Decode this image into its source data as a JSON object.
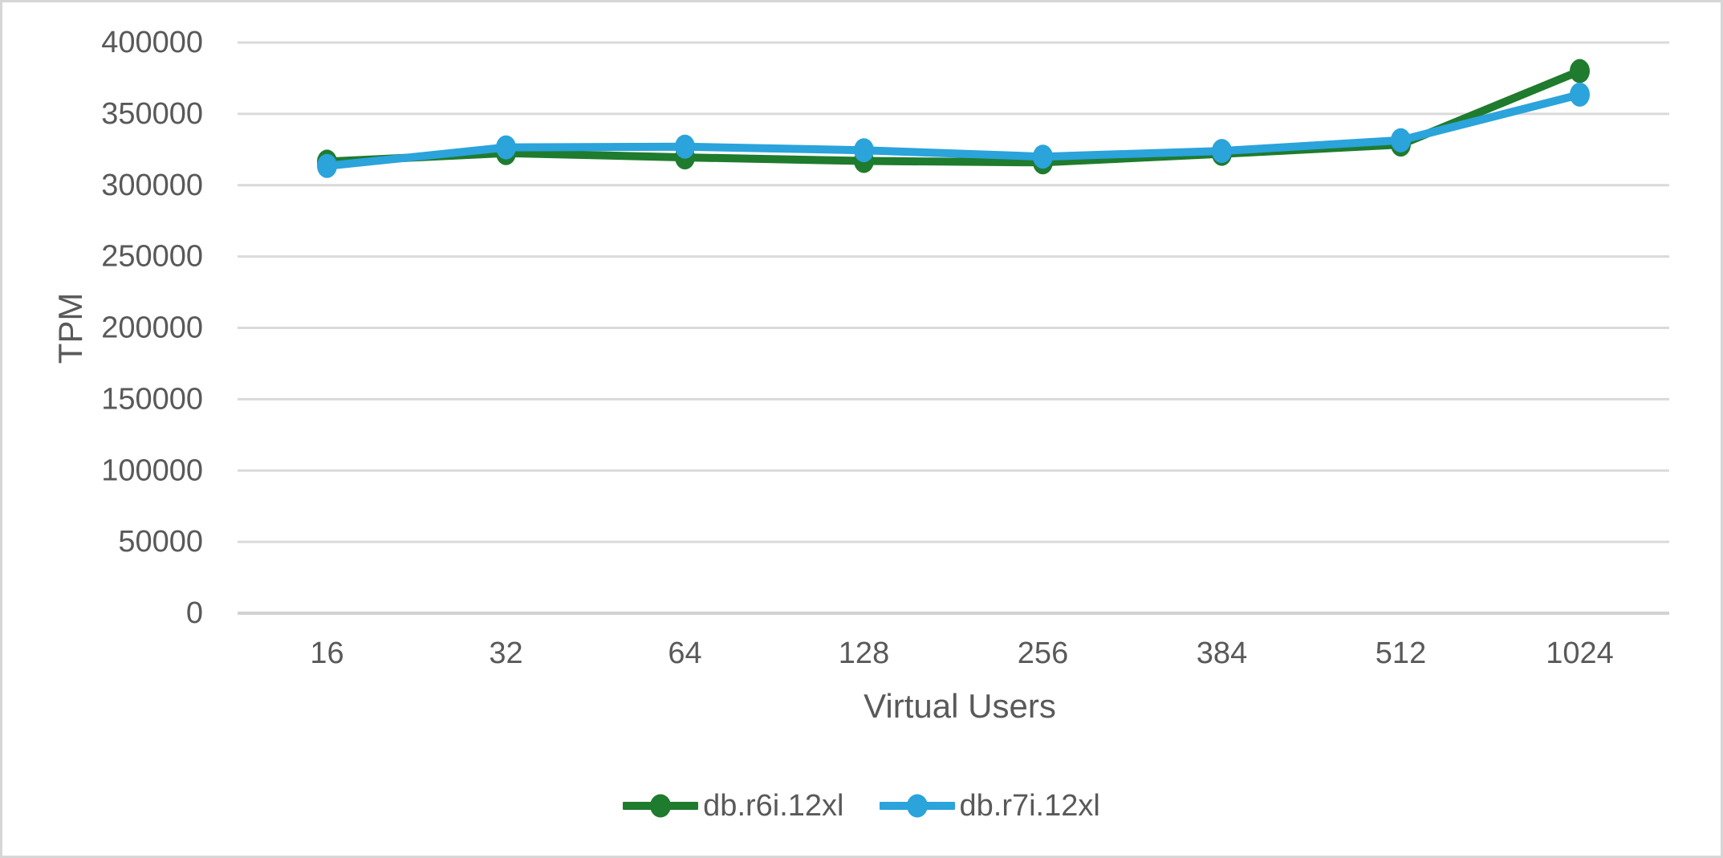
{
  "chart_data": {
    "type": "line",
    "xlabel": "Virtual Users",
    "ylabel": "TPM",
    "categories": [
      "16",
      "32",
      "64",
      "128",
      "256",
      "384",
      "512",
      "1024"
    ],
    "y_ticks": [
      "400000",
      "350000",
      "300000",
      "250000",
      "200000",
      "150000",
      "100000",
      "50000",
      "0"
    ],
    "ylim": [
      0,
      400000
    ],
    "grid": true,
    "legend_position": "bottom",
    "series": [
      {
        "name": "db.r6i.12xl",
        "color": "#1F7B2E",
        "values": [
          316500,
          322500,
          319500,
          317000,
          316000,
          322000,
          328500,
          380000
        ]
      },
      {
        "name": "db.r7i.12xl",
        "color": "#2BA3DB",
        "values": [
          313500,
          326500,
          327000,
          324500,
          320000,
          324000,
          331500,
          363500
        ]
      }
    ]
  },
  "colors": {
    "background": "#FFFFFF",
    "canvas_border": "#D6D6D6",
    "gridline": "#DADADA",
    "axis_line": "#D2D2D2",
    "text": "#595959"
  }
}
